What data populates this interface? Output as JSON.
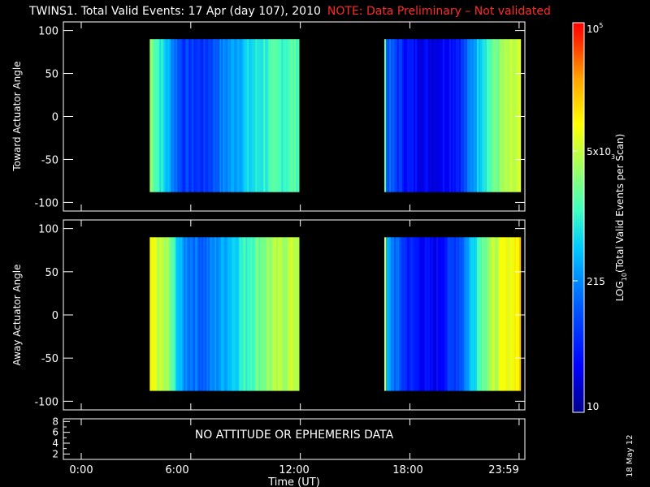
{
  "title": "TWINS1. Total Valid Events: 17 Apr (day 107), 2010",
  "note": "NOTE: Data Preliminary – Not validated",
  "date_stamp": "18 May 12",
  "colors": {
    "background": "#000000",
    "foreground": "#ffffff",
    "note": "#ff2a2a",
    "colorbar": [
      "#00008c",
      "#0000ff",
      "#0060ff",
      "#00c8ff",
      "#40ffc0",
      "#a0ff60",
      "#ffff00",
      "#ffa000",
      "#ff3000",
      "#ff0000"
    ]
  },
  "chart_data": [
    {
      "type": "heatmap",
      "panel": "toward",
      "ylabel": "Toward Actuator Angle",
      "ylim": [
        -110,
        110
      ],
      "yticks": [
        -100,
        -50,
        0,
        50,
        100
      ],
      "xlim": [
        0,
        24
      ],
      "xticks": [
        0,
        6,
        12,
        18,
        23.9833
      ],
      "y_data_range": [
        -88,
        90
      ],
      "data_segments_hours": [
        [
          3.75,
          11.9
        ],
        [
          16.6,
          24.6
        ]
      ],
      "color_profile": [
        {
          "t": 3.75,
          "level": 0.62
        },
        {
          "t": 4.6,
          "level": 0.42
        },
        {
          "t": 5.5,
          "level": 0.22
        },
        {
          "t": 6.7,
          "level": 0.2
        },
        {
          "t": 7.5,
          "level": 0.3
        },
        {
          "t": 8.6,
          "level": 0.4
        },
        {
          "t": 10.0,
          "level": 0.5
        },
        {
          "t": 11.9,
          "level": 0.55
        },
        {
          "t": 16.6,
          "level": 0.3
        },
        {
          "t": 17.8,
          "level": 0.15
        },
        {
          "t": 19.3,
          "level": 0.1
        },
        {
          "t": 20.8,
          "level": 0.2
        },
        {
          "t": 21.9,
          "level": 0.48
        },
        {
          "t": 23.0,
          "level": 0.62
        },
        {
          "t": 24.6,
          "level": 0.7
        }
      ]
    },
    {
      "type": "heatmap",
      "panel": "away",
      "ylabel": "Away Actuator Angle",
      "ylim": [
        -110,
        110
      ],
      "yticks": [
        -100,
        -50,
        0,
        50,
        100
      ],
      "xlim": [
        0,
        24
      ],
      "xticks": [
        0,
        6,
        12,
        18,
        23.9833
      ],
      "y_data_range": [
        -88,
        90
      ],
      "data_segments_hours": [
        [
          3.75,
          11.9
        ],
        [
          16.6,
          24.6
        ]
      ],
      "color_profile": [
        {
          "t": 3.75,
          "level": 0.72
        },
        {
          "t": 4.7,
          "level": 0.62
        },
        {
          "t": 5.5,
          "level": 0.35
        },
        {
          "t": 6.7,
          "level": 0.28
        },
        {
          "t": 7.7,
          "level": 0.38
        },
        {
          "t": 8.8,
          "level": 0.5
        },
        {
          "t": 10.2,
          "level": 0.62
        },
        {
          "t": 11.9,
          "level": 0.68
        },
        {
          "t": 16.6,
          "level": 0.4
        },
        {
          "t": 17.8,
          "level": 0.18
        },
        {
          "t": 19.3,
          "level": 0.1
        },
        {
          "t": 20.8,
          "level": 0.28
        },
        {
          "t": 21.9,
          "level": 0.58
        },
        {
          "t": 23.0,
          "level": 0.7
        },
        {
          "t": 24.6,
          "level": 0.82
        }
      ]
    },
    {
      "type": "line",
      "panel": "ephemeris",
      "ylim": [
        1,
        8.5
      ],
      "yticks": [
        2,
        4,
        6,
        8
      ],
      "minor_yticks": [
        3,
        5,
        7
      ],
      "xlim": [
        0,
        24
      ],
      "message": "NO ATTITUDE OR EPHEMERIS DATA"
    }
  ],
  "x_axis": {
    "label": "Time (UT)",
    "tick_labels": [
      "0:00",
      "6:00",
      "12:00",
      "18:00",
      "23:59"
    ]
  },
  "colorbar": {
    "label": "LOG10(Total Valid Events per Scan)",
    "scale": "log",
    "range": [
      10,
      100000
    ],
    "tick_labels": [
      {
        "value": 10,
        "label": "10"
      },
      {
        "value": 215,
        "label": "215"
      },
      {
        "value": 5000,
        "label": "5x10^3"
      },
      {
        "value": 100000,
        "label": "10^5"
      }
    ]
  }
}
